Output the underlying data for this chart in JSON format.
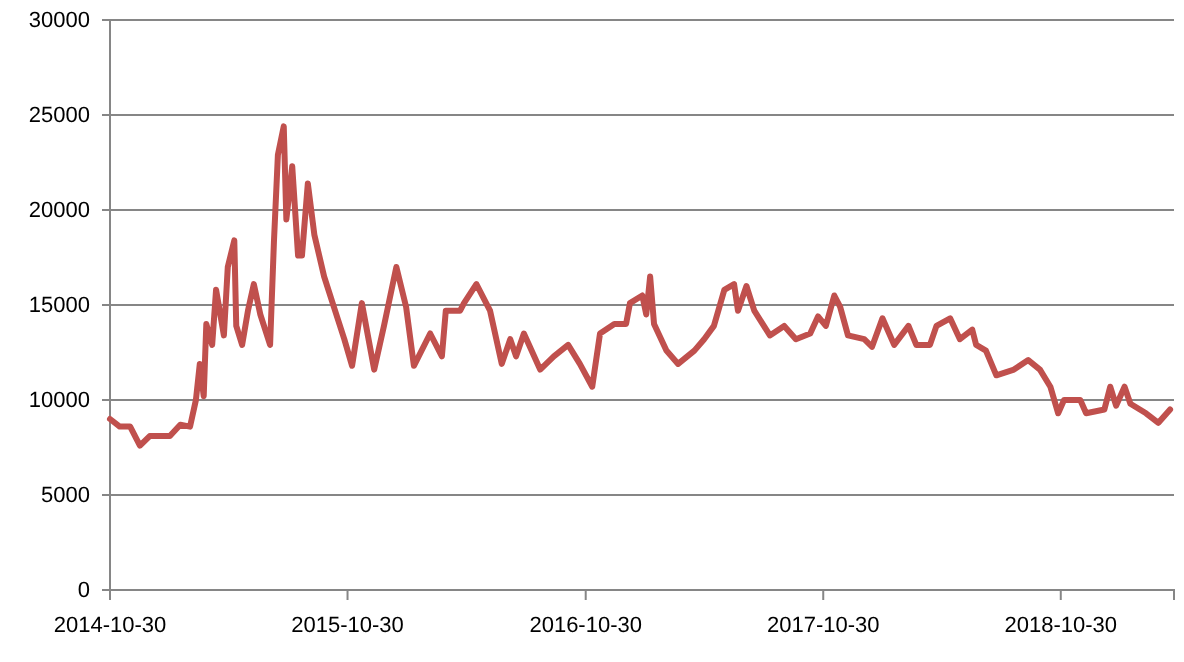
{
  "chart_data": {
    "type": "line",
    "grid": "y",
    "line_style": "solid",
    "marker": "none",
    "xlim": [
      "2014-10-30",
      "2019-04-22"
    ],
    "xticks": [
      {
        "value": "2014-10-30",
        "label": "2014-10-30"
      },
      {
        "value": "2015-10-30",
        "label": "2015-10-30"
      },
      {
        "value": "2016-10-30",
        "label": "2016-10-30"
      },
      {
        "value": "2017-10-30",
        "label": "2017-10-30"
      },
      {
        "value": "2018-10-30",
        "label": "2018-10-30"
      }
    ],
    "ylim": [
      0,
      30000
    ],
    "yticks": [
      0,
      5000,
      10000,
      15000,
      20000,
      25000,
      30000
    ],
    "x": [
      "2014-10-30",
      "2014-11-14",
      "2014-11-30",
      "2014-12-15",
      "2014-12-30",
      "2015-01-30",
      "2015-02-15",
      "2015-03-02",
      "2015-03-11",
      "2015-03-17",
      "2015-03-23",
      "2015-03-27",
      "2015-04-05",
      "2015-04-11",
      "2015-04-23",
      "2015-04-29",
      "2015-05-09",
      "2015-05-12",
      "2015-05-21",
      "2015-05-30",
      "2015-06-08",
      "2015-06-18",
      "2015-07-03",
      "2015-07-09",
      "2015-07-15",
      "2015-07-24",
      "2015-07-28",
      "2015-08-06",
      "2015-08-15",
      "2015-08-21",
      "2015-08-30",
      "2015-09-09",
      "2015-09-24",
      "2015-10-09",
      "2015-10-25",
      "2015-11-06",
      "2015-11-21",
      "2015-12-10",
      "2015-12-25",
      "2016-01-13",
      "2016-01-28",
      "2016-02-09",
      "2016-03-05",
      "2016-03-23",
      "2016-03-29",
      "2016-04-20",
      "2016-04-26",
      "2016-05-15",
      "2016-06-05",
      "2016-06-23",
      "2016-07-06",
      "2016-07-15",
      "2016-07-27",
      "2016-08-21",
      "2016-09-11",
      "2016-10-03",
      "2016-10-21",
      "2016-11-09",
      "2016-11-21",
      "2016-12-13",
      "2016-12-31",
      "2017-01-06",
      "2017-01-25",
      "2017-01-31",
      "2017-02-06",
      "2017-02-12",
      "2017-03-03",
      "2017-03-21",
      "2017-04-15",
      "2017-04-30",
      "2017-05-15",
      "2017-05-31",
      "2017-06-15",
      "2017-06-21",
      "2017-07-04",
      "2017-07-16",
      "2017-08-09",
      "2017-08-31",
      "2017-09-18",
      "2017-10-10",
      "2017-10-22",
      "2017-11-03",
      "2017-11-16",
      "2017-11-25",
      "2017-12-07",
      "2018-01-01",
      "2018-01-13",
      "2018-01-29",
      "2018-02-16",
      "2018-03-10",
      "2018-03-22",
      "2018-04-12",
      "2018-04-22",
      "2018-05-13",
      "2018-05-28",
      "2018-06-16",
      "2018-06-22",
      "2018-07-07",
      "2018-07-23",
      "2018-08-19",
      "2018-09-10",
      "2018-09-28",
      "2018-10-14",
      "2018-10-26",
      "2018-11-04",
      "2018-11-29",
      "2018-12-08",
      "2019-01-05",
      "2019-01-14",
      "2019-01-23",
      "2019-02-05",
      "2019-02-14",
      "2019-03-10",
      "2019-03-29",
      "2019-04-16"
    ],
    "series": [
      {
        "color": "#c0504d",
        "values": [
          9000,
          8600,
          8600,
          7600,
          8100,
          8100,
          8700,
          8600,
          10000,
          11900,
          10200,
          14000,
          12900,
          15800,
          13400,
          17000,
          18400,
          13900,
          12900,
          14700,
          16100,
          14500,
          12900,
          18400,
          22900,
          24400,
          19500,
          22300,
          17600,
          17600,
          21400,
          18700,
          16500,
          14900,
          13200,
          11800,
          15100,
          11600,
          13900,
          17000,
          14900,
          11800,
          13500,
          12300,
          14700,
          14700,
          15100,
          16100,
          14700,
          11900,
          13200,
          12300,
          13500,
          11600,
          12300,
          12900,
          11900,
          10700,
          13500,
          14000,
          14000,
          15100,
          15500,
          14500,
          16500,
          14000,
          12600,
          11900,
          12600,
          13200,
          13900,
          15800,
          16100,
          14700,
          16000,
          14700,
          13400,
          13900,
          13200,
          13500,
          14400,
          13900,
          15500,
          14900,
          13400,
          13200,
          12800,
          14300,
          12900,
          13900,
          12900,
          12900,
          13900,
          14300,
          13200,
          13700,
          12900,
          12600,
          11300,
          11600,
          12100,
          11600,
          10700,
          9300,
          10000,
          10000,
          9300,
          9500,
          10700,
          9700,
          10700,
          9800,
          9300,
          8800,
          9500
        ]
      }
    ]
  }
}
